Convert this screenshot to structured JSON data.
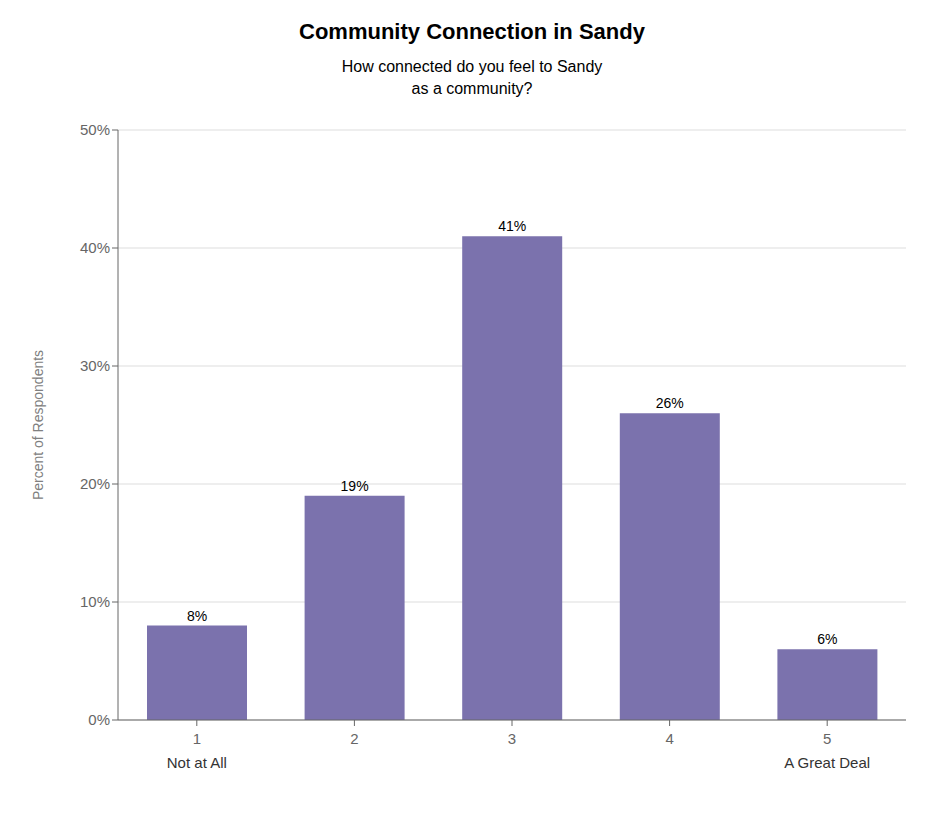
{
  "chart_data": {
    "type": "bar",
    "title": "Community Connection in Sandy",
    "subtitle": "How connected do you feel to Sandy\nas a community?",
    "categories": [
      "1",
      "2",
      "3",
      "4",
      "5"
    ],
    "sublabels": [
      "Not at All",
      null,
      null,
      null,
      "A Great Deal"
    ],
    "values": [
      8,
      19,
      41,
      26,
      6
    ],
    "value_labels": [
      "8%",
      "19%",
      "41%",
      "26%",
      "6%"
    ],
    "data_labels": true,
    "color": "#7B72AD",
    "ylabel": "Percent of Respondents",
    "ylim": [
      0,
      50
    ],
    "yticks": [
      {
        "value": 0,
        "label": "0%"
      },
      {
        "value": 10,
        "label": "10%"
      },
      {
        "value": 20,
        "label": "20%"
      },
      {
        "value": 30,
        "label": "30%"
      },
      {
        "value": 40,
        "label": "40%"
      },
      {
        "value": 50,
        "label": "50%"
      }
    ],
    "grid": true
  }
}
